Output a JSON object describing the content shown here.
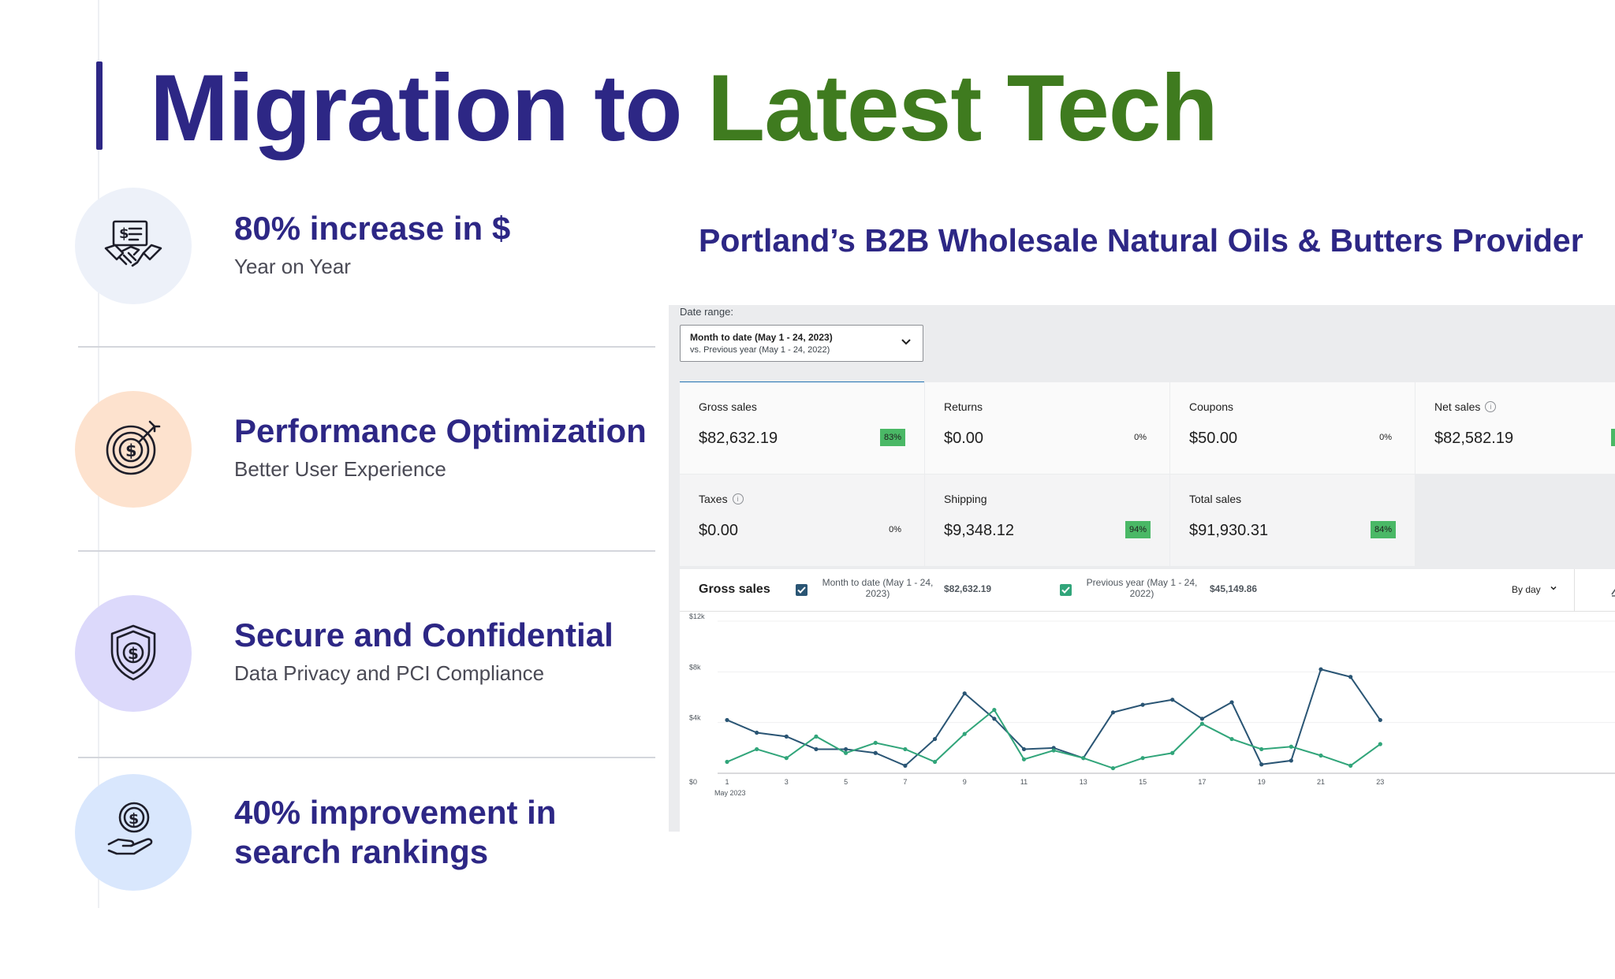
{
  "title": {
    "part1": "Migration to",
    "part2": "Latest Tech"
  },
  "features": [
    {
      "heading": "80% increase in $",
      "sub": "Year on Year",
      "icon": "handshake-invoice-icon",
      "circle_color": "#edf1f9"
    },
    {
      "heading": "Performance Optimization",
      "sub": "Better User Experience",
      "icon": "target-dollar-icon",
      "circle_color": "#fde2ce"
    },
    {
      "heading": "Secure and Confidential",
      "sub": "Data Privacy and PCI Compliance",
      "icon": "shield-dollar-icon",
      "circle_color": "#dcd9fb"
    },
    {
      "heading": "40% improvement in search rankings",
      "heading_lines": [
        "40% improvement in",
        "search rankings"
      ],
      "icon": "hand-coin-icon",
      "circle_color": "#d9e7fd"
    }
  ],
  "subtitle": "Portland’s B2B Wholesale Natural Oils & Butters Provider",
  "dashboard": {
    "date_range_label": "Date range:",
    "date_range_line1": "Month to date (May 1 - 24, 2023)",
    "date_range_line2": "vs. Previous year (May 1 - 24, 2022)",
    "tiles": [
      {
        "label": "Gross sales",
        "value": "$82,632.19",
        "delta": "83%",
        "positive": true,
        "info": false
      },
      {
        "label": "Returns",
        "value": "$0.00",
        "delta": "0%",
        "positive": false,
        "info": false
      },
      {
        "label": "Coupons",
        "value": "$50.00",
        "delta": "0%",
        "positive": false,
        "info": false
      },
      {
        "label": "Net sales",
        "value": "$82,582.19",
        "delta": "",
        "positive": true,
        "info": true
      },
      {
        "label": "Taxes",
        "value": "$0.00",
        "delta": "0%",
        "positive": false,
        "info": true
      },
      {
        "label": "Shipping",
        "value": "$9,348.12",
        "delta": "94%",
        "positive": true,
        "info": false
      },
      {
        "label": "Total sales",
        "value": "$91,930.31",
        "delta": "84%",
        "positive": true,
        "info": false
      }
    ],
    "chart_title": "Gross sales",
    "legend": [
      {
        "name_line1": "Month to date (May 1 - 24,",
        "name_line2": "2023)",
        "value": "$82,632.19",
        "color": "#2a5574"
      },
      {
        "name_line1": "Previous year (May 1 - 24,",
        "name_line2": "2022)",
        "value": "$45,149.86",
        "color": "#31a57a"
      }
    ],
    "interval": "By day",
    "colors": {
      "accent": "#2271b1",
      "positive_badge": "#4ab866"
    }
  },
  "chart_data": {
    "type": "line",
    "x": [
      1,
      2,
      3,
      4,
      5,
      6,
      7,
      8,
      9,
      10,
      11,
      12,
      13,
      14,
      15,
      16,
      17,
      18,
      19,
      20,
      21,
      22,
      23
    ],
    "xticks": [
      "1",
      "3",
      "5",
      "7",
      "9",
      "11",
      "13",
      "15",
      "17",
      "19",
      "21",
      "23"
    ],
    "xlabel_sub": "May 2023",
    "yticks": [
      "$0",
      "$4k",
      "$8k",
      "$12k"
    ],
    "ylim": [
      0,
      12000
    ],
    "grid": true,
    "series": [
      {
        "name": "Month to date (May 1 - 24, 2023)",
        "color": "#2a5574",
        "values": [
          4200,
          3200,
          2900,
          1900,
          1900,
          1600,
          600,
          2700,
          6300,
          4300,
          1900,
          2000,
          1200,
          4800,
          5400,
          5800,
          4300,
          5600,
          700,
          1000,
          8200,
          7600,
          4200
        ]
      },
      {
        "name": "Previous year (May 1 - 24, 2022)",
        "color": "#31a57a",
        "values": [
          900,
          1900,
          1200,
          2900,
          1600,
          2400,
          1900,
          900,
          3100,
          5000,
          1100,
          1800,
          1200,
          400,
          1200,
          1600,
          3900,
          2700,
          1900,
          2100,
          1400,
          600,
          2300
        ]
      }
    ]
  }
}
